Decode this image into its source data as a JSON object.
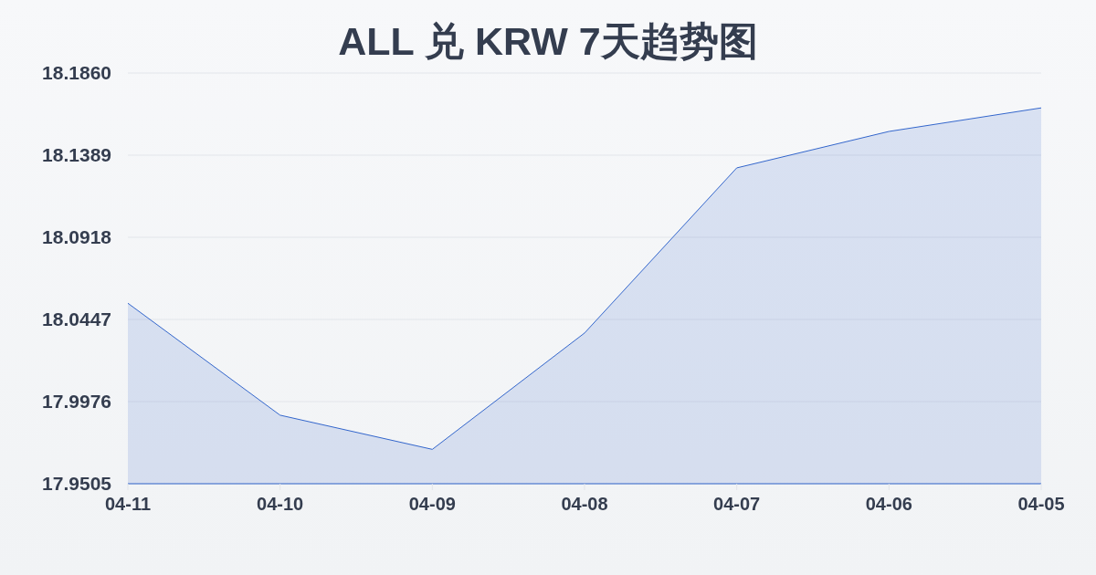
{
  "chart_data": {
    "type": "area",
    "title": "ALL 兑 KRW 7天趋势图",
    "categories": [
      "04-11",
      "04-10",
      "04-09",
      "04-08",
      "04-07",
      "04-06",
      "04-05"
    ],
    "series": [
      {
        "color": "#3366cc",
        "values": [
          18.054,
          17.9898,
          17.9702,
          18.0369,
          18.1316,
          18.1525,
          18.166
        ]
      }
    ],
    "ylim": [
      17.9505,
      18.186
    ],
    "yticks": [
      17.9505,
      17.9976,
      18.0447,
      18.0918,
      18.1389,
      {
        "value": 18.186,
        "label": "18.1860"
      }
    ],
    "grid": "y"
  }
}
